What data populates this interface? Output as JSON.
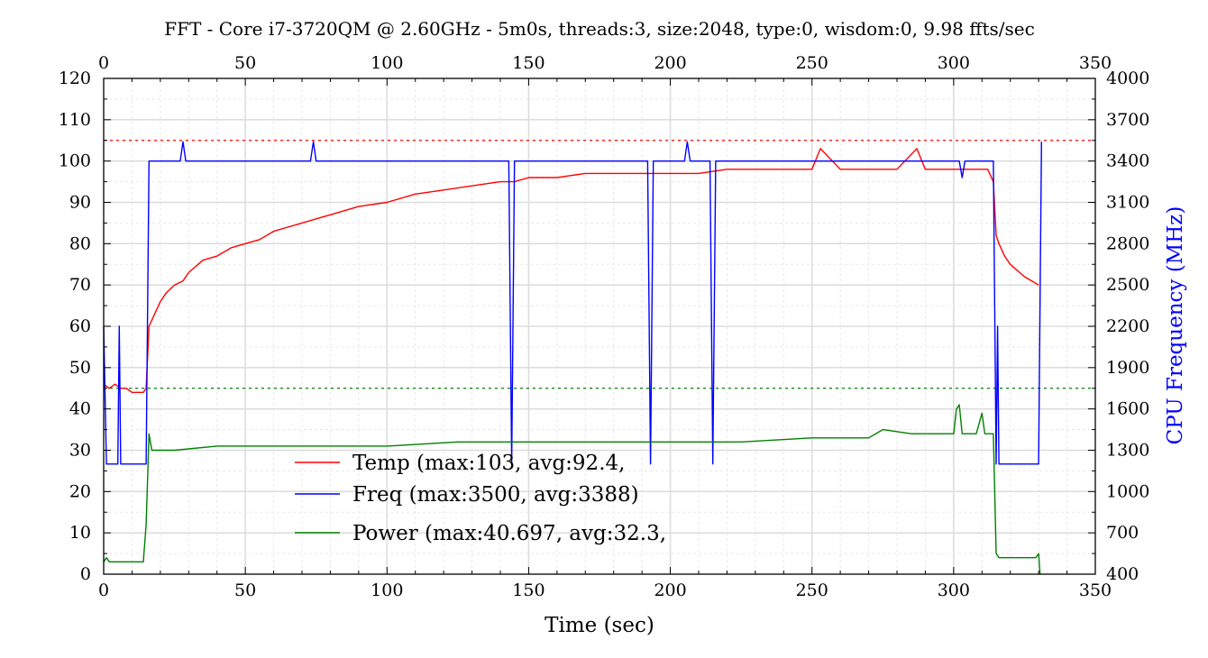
{
  "chart_data": {
    "type": "line",
    "title": "FFT - Core i7-3720QM @ 2.60GHz - 5m0s, threads:3, size:2048, type:0, wisdom:0, 9.98 ffts/sec",
    "xlabel": "Time (sec)",
    "ylabel_left": "",
    "ylabel_right": "CPU Frequency (MHz)",
    "xlim": [
      0,
      350
    ],
    "ylim_left": [
      0,
      120
    ],
    "ylim_right": [
      400,
      4000
    ],
    "x_ticks": [
      "0",
      "50",
      "100",
      "150",
      "200",
      "250",
      "300",
      "350"
    ],
    "y_left_ticks": [
      "0",
      "10",
      "20",
      "30",
      "40",
      "50",
      "60",
      "70",
      "80",
      "90",
      "100",
      "110",
      "120"
    ],
    "y_right_ticks": [
      "400",
      "700",
      "1000",
      "1300",
      "1600",
      "1900",
      "2200",
      "2500",
      "2800",
      "3100",
      "3400",
      "3700",
      "4000"
    ],
    "grid": true,
    "legend_position": "lower-center",
    "reference_lines": [
      {
        "axis": "left",
        "value": 105,
        "color": "#ff0000"
      },
      {
        "axis": "left",
        "value": 45,
        "color": "#008000"
      }
    ],
    "series": [
      {
        "name": "Temp (max:103, avg:92.4,",
        "axis": "left",
        "color": "#ff0000",
        "x": [
          0,
          2,
          4,
          6,
          8,
          10,
          12,
          14,
          15,
          16,
          18,
          20,
          22,
          25,
          28,
          30,
          35,
          40,
          45,
          50,
          55,
          60,
          65,
          70,
          75,
          80,
          90,
          100,
          110,
          120,
          130,
          140,
          145,
          150,
          160,
          170,
          180,
          190,
          200,
          210,
          220,
          230,
          240,
          250,
          253,
          260,
          270,
          280,
          287,
          290,
          300,
          305,
          310,
          312,
          314,
          315,
          316,
          318,
          320,
          325,
          330
        ],
        "y": [
          46,
          45,
          46,
          45,
          45,
          44,
          44,
          44,
          45,
          60,
          63,
          66,
          68,
          70,
          71,
          73,
          76,
          77,
          79,
          80,
          81,
          83,
          84,
          85,
          86,
          87,
          89,
          90,
          92,
          93,
          94,
          95,
          95,
          96,
          96,
          97,
          97,
          97,
          97,
          97,
          98,
          98,
          98,
          98,
          103,
          98,
          98,
          98,
          103,
          98,
          98,
          98,
          98,
          98,
          95,
          82,
          80,
          77,
          75,
          72,
          70
        ]
      },
      {
        "name": "Freq (max:3500, avg:3388)",
        "axis": "right",
        "color": "#0000ff",
        "x": [
          0,
          1,
          1.5,
          5,
          5.5,
          6,
          6.5,
          15,
          16,
          27,
          28,
          29,
          73,
          74,
          75,
          143,
          144,
          145,
          192,
          193,
          194,
          205,
          206,
          207,
          214,
          215,
          216,
          302,
          303,
          304,
          314,
          315,
          315.5,
          316,
          330,
          331
        ],
        "y": [
          2200,
          1200,
          1200,
          1200,
          2200,
          1200,
          1200,
          1200,
          3400,
          3400,
          3540,
          3400,
          3400,
          3540,
          3400,
          3400,
          1200,
          3400,
          3400,
          1200,
          3400,
          3400,
          3540,
          3400,
          3400,
          1200,
          3400,
          3400,
          3280,
          3400,
          3400,
          1200,
          2200,
          1200,
          1200,
          3540
        ]
      },
      {
        "name": "Power (max:40.697, avg:32.3,",
        "axis": "left",
        "color": "#008000",
        "x": [
          0,
          1,
          2,
          5,
          10,
          14,
          15,
          16,
          17,
          18,
          25,
          40,
          50,
          75,
          100,
          125,
          150,
          175,
          200,
          225,
          250,
          270,
          275,
          285,
          290,
          300,
          301,
          302,
          303,
          304,
          308,
          310,
          311,
          312,
          313,
          314,
          315,
          316,
          320,
          325,
          329,
          330,
          330.5
        ],
        "y": [
          3,
          4,
          3,
          3,
          3,
          3,
          12,
          34,
          30,
          30,
          30,
          31,
          31,
          31,
          31,
          32,
          32,
          32,
          32,
          32,
          33,
          33,
          35,
          34,
          34,
          34,
          40,
          41,
          34,
          34,
          34,
          39,
          34,
          34,
          34,
          34,
          5,
          4,
          4,
          4,
          4,
          5,
          0
        ]
      }
    ]
  }
}
